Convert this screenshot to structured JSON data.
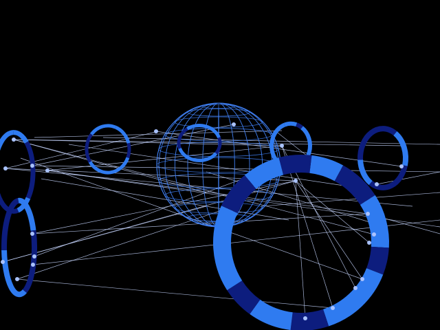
{
  "scene": {
    "background": "#000000",
    "colors": {
      "ring_light": "#2f7bf0",
      "ring_dark": "#0d1d7e",
      "sphere_line": "#3f7ff2",
      "link_line": "#c7d6ff",
      "node": "#a9c2ff"
    },
    "elements": [
      "wireframe-sphere",
      "segmented-rings",
      "connection-lines",
      "node-points"
    ]
  }
}
